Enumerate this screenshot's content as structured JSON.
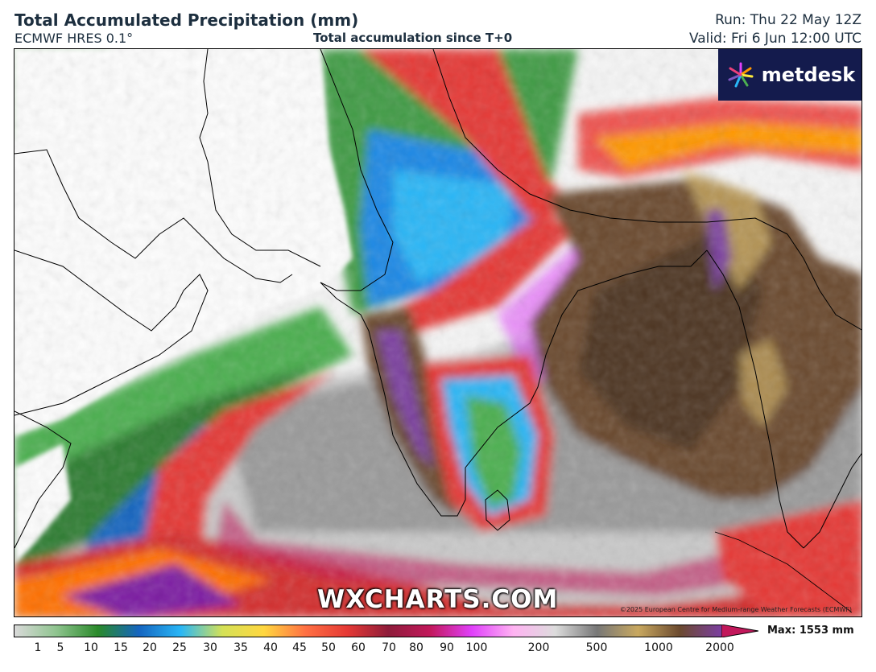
{
  "header": {
    "title": "Total Accumulated Precipitation (mm)",
    "model": "ECMWF HRES 0.1°",
    "subtitle": "Total accumulation since T+0",
    "run": "Run: Thu 22 May 12Z",
    "valid": "Valid: Fri 6 Jun 12:00 UTC"
  },
  "map": {
    "logo_text": "metdesk",
    "watermark": "WXCHARTS.COM",
    "copyright": "©2025 European Centre for Medium-range Weather Forecasts (ECMWF)"
  },
  "colorbar": {
    "ticks": [
      "1",
      "5",
      "10",
      "15",
      "20",
      "25",
      "30",
      "35",
      "40",
      "45",
      "50",
      "60",
      "70",
      "80",
      "90",
      "100",
      "200",
      "500",
      "1000",
      "2000"
    ],
    "max_label": "Max: 1553 mm",
    "colors": [
      "#d9d9d9",
      "#8fc48f",
      "#2a8a2a",
      "#1565c0",
      "#29b6f6",
      "#d4e157",
      "#ffd740",
      "#ff7043",
      "#e53935",
      "#8e1c3a",
      "#c2185b",
      "#e040fb",
      "#ffb3f2",
      "#dcdcdc",
      "#777777",
      "#c8a860",
      "#6b4a2f",
      "#7b3fa0"
    ]
  }
}
